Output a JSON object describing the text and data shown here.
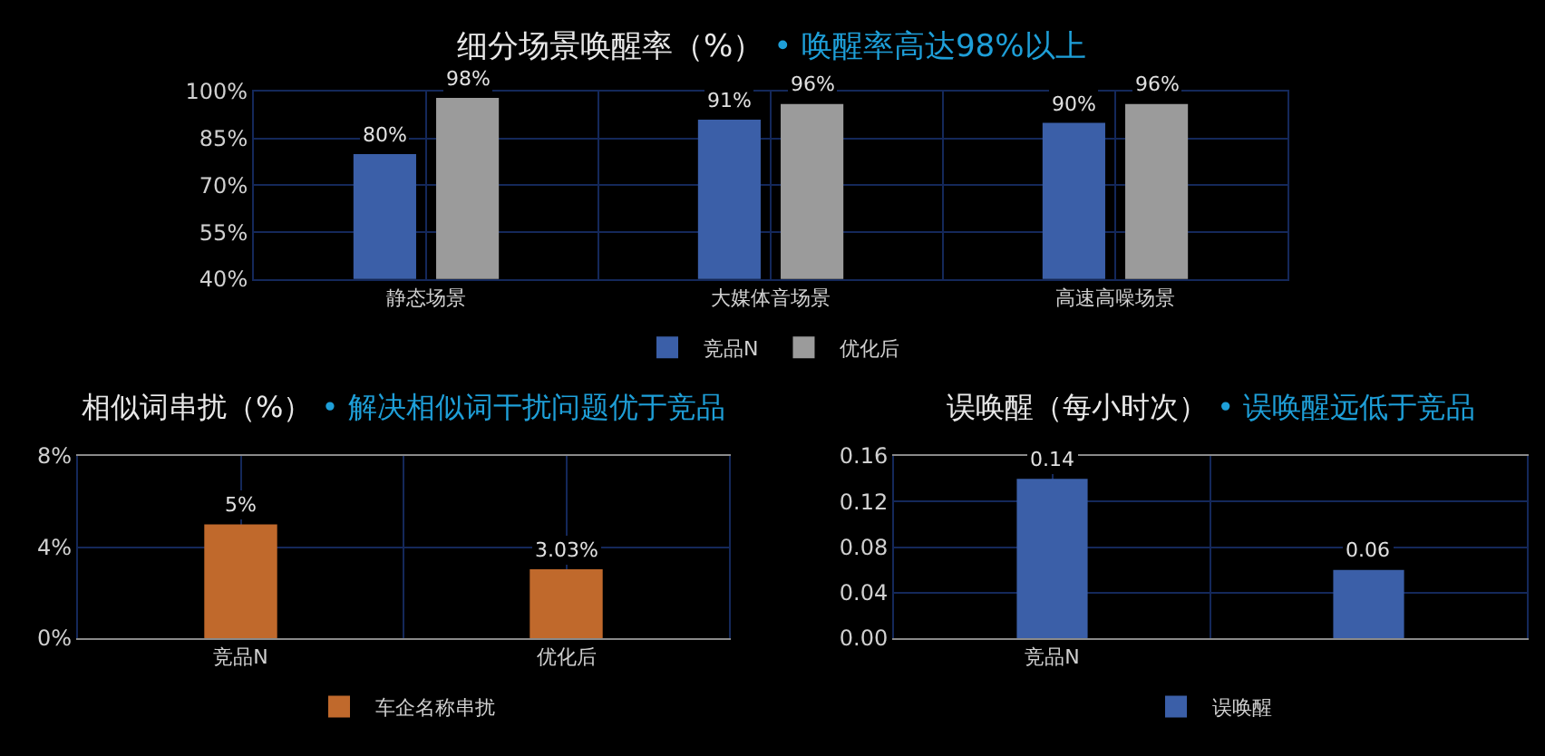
{
  "chart_data": [
    {
      "type": "bar",
      "title": "细分场景唤醒率（%）",
      "subtitle": "• 唤醒率高达98%以上",
      "categories": [
        "静态场景",
        "大媒体音场景",
        "高速高噪场景"
      ],
      "series": [
        {
          "name": "竞品N",
          "color": "#3b5fa8",
          "values": [
            80,
            91,
            90
          ],
          "value_labels": [
            "80%",
            "91%",
            "90%"
          ]
        },
        {
          "name": "优化后",
          "color": "#9b9b9b",
          "values": [
            98,
            96,
            96
          ],
          "value_labels": [
            "98%",
            "96%",
            "96%"
          ]
        }
      ],
      "ylim": [
        40,
        100
      ],
      "yticks": [
        {
          "value": 40,
          "label": "40%"
        },
        {
          "value": 55,
          "label": "55%"
        },
        {
          "value": 70,
          "label": "70%"
        },
        {
          "value": 85,
          "label": "85%"
        },
        {
          "value": 100,
          "label": "100%"
        }
      ],
      "grid": true,
      "legend": "bottom"
    },
    {
      "type": "bar",
      "title": "相似词串扰（%）",
      "subtitle": "• 解决相似词干扰问题优于竞品",
      "categories": [
        "竞品N",
        "优化后"
      ],
      "series": [
        {
          "name": "车企名称串扰",
          "color": "#c0692c",
          "values": [
            5,
            3.03
          ],
          "value_labels": [
            "5%",
            "3.03%"
          ]
        }
      ],
      "ylim": [
        0,
        8
      ],
      "yticks": [
        {
          "value": 0,
          "label": "0%"
        },
        {
          "value": 4,
          "label": "4%"
        },
        {
          "value": 8,
          "label": "8%"
        }
      ],
      "grid": true,
      "legend": "bottom"
    },
    {
      "type": "bar",
      "title": "误唤醒（每小时次）",
      "subtitle": "• 误唤醒远低于竞品",
      "categories": [
        "竞品N",
        null
      ],
      "series": [
        {
          "name": "误唤醒",
          "color": "#3b5fa8",
          "values": [
            0.14,
            0.06
          ]
        }
      ],
      "ylim": [
        0,
        0.16
      ],
      "yticks": [
        {
          "value": 0,
          "label": "0.00"
        },
        {
          "value": 0.04,
          "label": "0.04"
        },
        {
          "value": 0.08,
          "label": "0.08"
        },
        {
          "value": 0.12,
          "label": "0.12"
        },
        {
          "value": 0.16,
          "label": "0.16"
        }
      ],
      "grid": true,
      "legend": "bottom",
      "data_labels": true
    }
  ]
}
